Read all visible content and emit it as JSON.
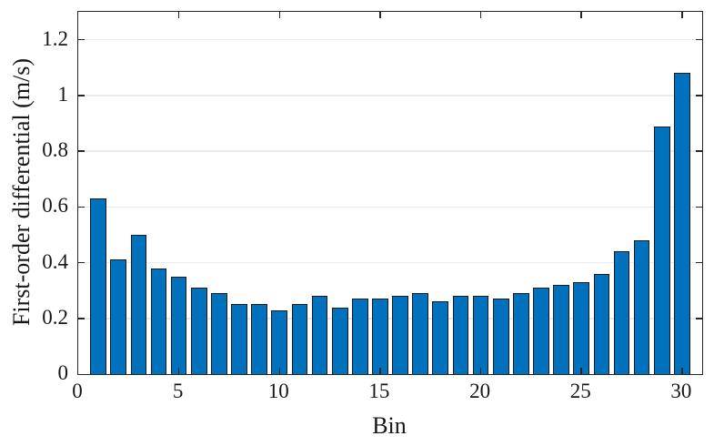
{
  "chart_data": {
    "type": "bar",
    "xlabel": "Bin",
    "ylabel": "First-order differential (m/s)",
    "x": [
      1,
      2,
      3,
      4,
      5,
      6,
      7,
      8,
      9,
      10,
      11,
      12,
      13,
      14,
      15,
      16,
      17,
      18,
      19,
      20,
      21,
      22,
      23,
      24,
      25,
      26,
      27,
      28,
      29,
      30
    ],
    "values": [
      0.63,
      0.41,
      0.5,
      0.38,
      0.35,
      0.31,
      0.29,
      0.25,
      0.25,
      0.23,
      0.25,
      0.28,
      0.24,
      0.27,
      0.27,
      0.28,
      0.29,
      0.26,
      0.28,
      0.28,
      0.27,
      0.29,
      0.31,
      0.32,
      0.33,
      0.36,
      0.44,
      0.48,
      0.89,
      1.08
    ],
    "bar_width": 0.8,
    "xlim": [
      0,
      31
    ],
    "ylim": [
      0,
      1.3
    ],
    "xticks": [
      0,
      5,
      10,
      15,
      20,
      25,
      30
    ],
    "xtick_labels": [
      "0",
      "5",
      "10",
      "15",
      "20",
      "25",
      "30"
    ],
    "yticks": [
      0,
      0.2,
      0.4,
      0.6,
      0.8,
      1,
      1.2
    ],
    "ytick_labels": [
      "0",
      "0.2",
      "0.4",
      "0.6",
      "0.8",
      "1",
      "1.2"
    ],
    "grid": "horizontal-only",
    "legend": "none",
    "colors": {
      "bar_fill": "#0072BD",
      "bar_edge": "#1a1a1a",
      "grid": "#ebebeb",
      "axis": "#262626",
      "background": "#ffffff"
    }
  }
}
